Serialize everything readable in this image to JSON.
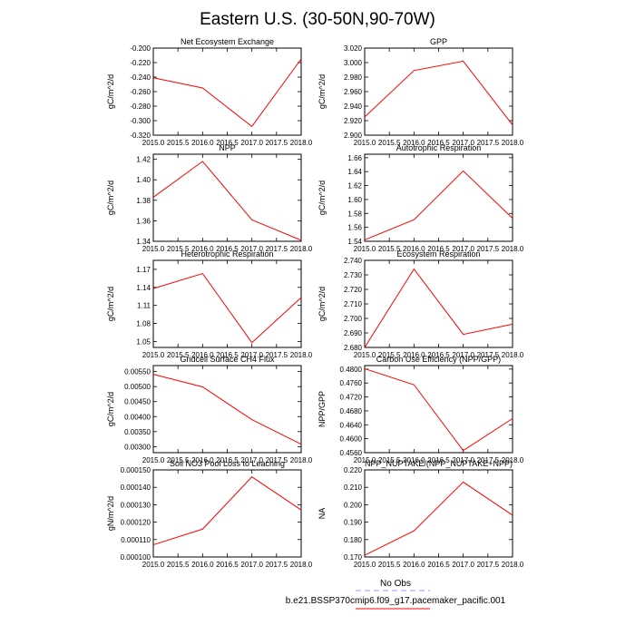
{
  "title": "Eastern U.S. (30-50N,90-70W)",
  "chart_data": [
    {
      "type": "line",
      "title": "Net Ecosystem Exchange",
      "ylabel": "gC/m^2/d",
      "x": [
        2015,
        2016,
        2017,
        2018
      ],
      "series": [
        {
          "values": [
            -0.241,
            -0.255,
            -0.308,
            -0.215
          ],
          "color": "#ff0000"
        }
      ],
      "xlim": [
        2015,
        2018
      ],
      "ylim": [
        -0.32,
        -0.2
      ],
      "xticks": [
        "2015.0",
        "2015.5",
        "2016.0",
        "2016.5",
        "2017.0",
        "2017.5",
        "2018.0"
      ],
      "yticks": [
        "-0.200",
        "-0.220",
        "-0.240",
        "-0.260",
        "-0.280",
        "-0.300",
        "-0.320"
      ]
    },
    {
      "type": "line",
      "title": "GPP",
      "ylabel": "gC/m^2/d",
      "x": [
        2015,
        2016,
        2017,
        2018
      ],
      "series": [
        {
          "values": [
            2.925,
            2.989,
            3.002,
            2.914
          ],
          "color": "#ff0000"
        }
      ],
      "xlim": [
        2015,
        2018
      ],
      "ylim": [
        2.9,
        3.02
      ],
      "xticks": [
        "2015.0",
        "2015.5",
        "2016.0",
        "2016.5",
        "2017.0",
        "2017.5",
        "2018.0"
      ],
      "yticks": [
        "3.020",
        "3.000",
        "2.980",
        "2.960",
        "2.940",
        "2.920",
        "2.900"
      ]
    },
    {
      "type": "line",
      "title": "NPP",
      "ylabel": "gC/m^2/d",
      "x": [
        2015,
        2016,
        2017,
        2018
      ],
      "series": [
        {
          "values": [
            1.383,
            1.418,
            1.361,
            1.341
          ],
          "color": "#ff0000"
        }
      ],
      "xlim": [
        2015,
        2018
      ],
      "ylim": [
        1.34,
        1.425
      ],
      "xticks": [
        "2015.0",
        "2015.5",
        "2016.0",
        "2016.5",
        "2017.0",
        "2017.5",
        "2018.0"
      ],
      "yticks": [
        "1.42",
        "1.40",
        "1.38",
        "1.36",
        "1.34"
      ]
    },
    {
      "type": "line",
      "title": "Autotrophic Respiration",
      "ylabel": "gC/m^2/d",
      "x": [
        2015,
        2016,
        2017,
        2018
      ],
      "series": [
        {
          "values": [
            1.542,
            1.571,
            1.641,
            1.573
          ],
          "color": "#ff0000"
        }
      ],
      "xlim": [
        2015,
        2018
      ],
      "ylim": [
        1.54,
        1.665
      ],
      "xticks": [
        "2015.0",
        "2015.5",
        "2016.0",
        "2016.5",
        "2017.0",
        "2017.5",
        "2018.0"
      ],
      "yticks": [
        "1.66",
        "1.64",
        "1.62",
        "1.60",
        "1.58",
        "1.56",
        "1.54"
      ]
    },
    {
      "type": "line",
      "title": "Heterotrophic Respiration",
      "ylabel": "gC/m^2/d",
      "x": [
        2015,
        2016,
        2017,
        2018
      ],
      "series": [
        {
          "values": [
            1.138,
            1.163,
            1.048,
            1.123
          ],
          "color": "#ff0000"
        }
      ],
      "xlim": [
        2015,
        2018
      ],
      "ylim": [
        1.04,
        1.185
      ],
      "xticks": [
        "2015.0",
        "2015.5",
        "2016.0",
        "2016.5",
        "2017.0",
        "2017.5",
        "2018.0"
      ],
      "yticks": [
        "1.17",
        "1.14",
        "1.11",
        "1.08",
        "1.05"
      ]
    },
    {
      "type": "line",
      "title": "Ecosystem Respiration",
      "ylabel": "gC/m^2/d",
      "x": [
        2015,
        2016,
        2017,
        2018
      ],
      "series": [
        {
          "values": [
            2.68,
            2.734,
            2.689,
            2.696
          ],
          "color": "#ff0000"
        }
      ],
      "xlim": [
        2015,
        2018
      ],
      "ylim": [
        2.68,
        2.74
      ],
      "xticks": [
        "2015.0",
        "2015.5",
        "2016.0",
        "2016.5",
        "2017.0",
        "2017.5",
        "2018.0"
      ],
      "yticks": [
        "2.740",
        "2.730",
        "2.720",
        "2.710",
        "2.700",
        "2.690",
        "2.680"
      ]
    },
    {
      "type": "line",
      "title": "Gridcell Surface CH4 Flux",
      "ylabel": "gC/m^2/d",
      "x": [
        2015,
        2016,
        2017,
        2018
      ],
      "series": [
        {
          "values": [
            0.00541,
            0.00499,
            0.0039,
            0.00308
          ],
          "color": "#ff0000"
        }
      ],
      "xlim": [
        2015,
        2018
      ],
      "ylim": [
        0.0028,
        0.0057
      ],
      "xticks": [
        "2015.0",
        "2015.5",
        "2016.0",
        "2016.5",
        "2017.0",
        "2017.5",
        "2018.0"
      ],
      "yticks": [
        "0.00550",
        "0.00500",
        "0.00450",
        "0.00400",
        "0.00350",
        "0.00300"
      ]
    },
    {
      "type": "line",
      "title": "Carbon Use Efficiency (NPP/GPP)",
      "ylabel": "NPP/GPP",
      "x": [
        2015,
        2016,
        2017,
        2018
      ],
      "series": [
        {
          "values": [
            0.4801,
            0.4755,
            0.4566,
            0.4658
          ],
          "color": "#ff0000"
        }
      ],
      "xlim": [
        2015,
        2018
      ],
      "ylim": [
        0.456,
        0.481
      ],
      "xticks": [
        "2015.0",
        "2015.5",
        "2016.0",
        "2016.5",
        "2017.0",
        "2017.5",
        "2018.0"
      ],
      "yticks": [
        "0.4800",
        "0.4760",
        "0.4720",
        "0.4680",
        "0.4640",
        "0.4600",
        "0.4560"
      ]
    },
    {
      "type": "line",
      "title": "Soil NO3 Pool Loss to Leaching",
      "ylabel": "gN/m^2/d",
      "x": [
        2015,
        2016,
        2017,
        2018
      ],
      "series": [
        {
          "values": [
            0.000107,
            0.000116,
            0.000146,
            0.000127
          ],
          "color": "#ff0000"
        }
      ],
      "xlim": [
        2015,
        2018
      ],
      "ylim": [
        0.0001,
        0.00015
      ],
      "xticks": [
        "2015.0",
        "2015.5",
        "2016.0",
        "2016.5",
        "2017.0",
        "2017.5",
        "2018.0"
      ],
      "yticks": [
        "0.000150",
        "0.000140",
        "0.000130",
        "0.000120",
        "0.000110",
        "0.000100"
      ]
    },
    {
      "type": "line",
      "title": "NPP_NUPTAKE/(NPP_NUPTAKE+NPP)",
      "ylabel": "NA",
      "x": [
        2015,
        2016,
        2017,
        2018
      ],
      "series": [
        {
          "values": [
            0.171,
            0.185,
            0.213,
            0.194
          ],
          "color": "#ff0000"
        }
      ],
      "xlim": [
        2015,
        2018
      ],
      "ylim": [
        0.17,
        0.22
      ],
      "xticks": [
        "2015.0",
        "2015.5",
        "2016.0",
        "2016.5",
        "2017.0",
        "2017.5",
        "2018.0"
      ],
      "yticks": [
        "0.220",
        "0.210",
        "0.200",
        "0.190",
        "0.180",
        "0.170"
      ]
    }
  ],
  "legend": [
    {
      "label": "No Obs",
      "color": "#9999ff",
      "style": "dashed"
    },
    {
      "label": "b.e21.BSSP370cmip6.f09_g17.pacemaker_pacific.001",
      "color": "#ff0000",
      "style": "solid"
    }
  ]
}
